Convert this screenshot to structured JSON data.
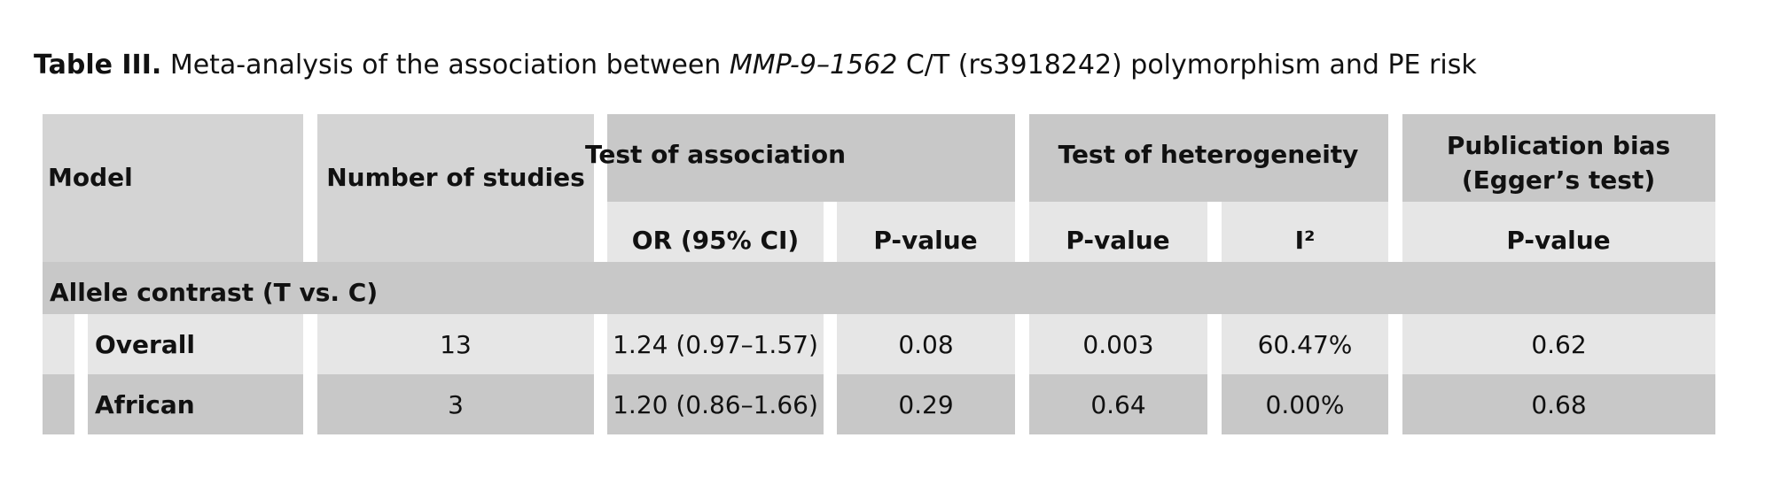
{
  "title": {
    "label": "Table III.",
    "text_before": " Meta-analysis of the association between ",
    "gene": "MMP-9–1562",
    "text_after": " C/T (rs3918242) polymorphism and PE risk"
  },
  "header": {
    "model": "Model",
    "studies": "Number of studies",
    "association": {
      "title": "Test of association",
      "columns": [
        "OR (95% CI)",
        "P-value"
      ]
    },
    "heterogeneity": {
      "title": "Test of heterogeneity",
      "columns": [
        "P-value",
        "I²"
      ]
    },
    "bias": {
      "title": [
        "Publication bias",
        "(Egger’s test)"
      ],
      "columns": [
        "P-value"
      ]
    }
  },
  "section": "Allele contrast (T vs. C)",
  "rows": [
    [
      "Overall",
      "13",
      "1.24 (0.97–1.57)",
      "0.08",
      "0.003",
      "60.47%",
      "0.62"
    ],
    [
      "African",
      "3",
      "1.20 (0.86–1.66)",
      "0.29",
      "0.64",
      "0.00%",
      "0.68"
    ]
  ]
}
